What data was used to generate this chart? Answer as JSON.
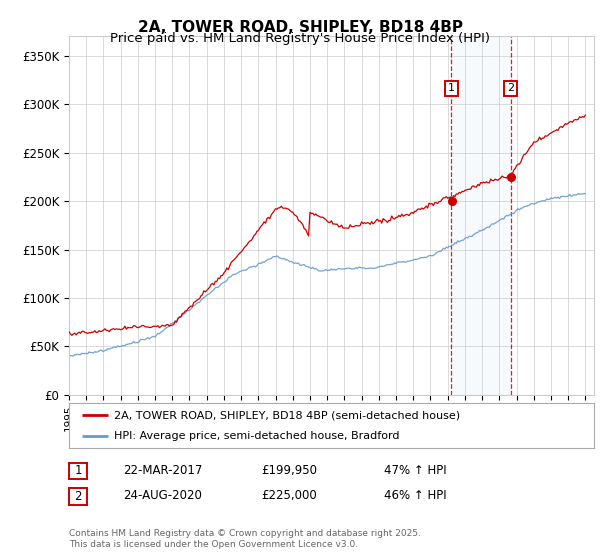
{
  "title": "2A, TOWER ROAD, SHIPLEY, BD18 4BP",
  "subtitle": "Price paid vs. HM Land Registry's House Price Index (HPI)",
  "ylabel_ticks": [
    "£0",
    "£50K",
    "£100K",
    "£150K",
    "£200K",
    "£250K",
    "£300K",
    "£350K"
  ],
  "ytick_values": [
    0,
    50000,
    100000,
    150000,
    200000,
    250000,
    300000,
    350000
  ],
  "ylim": [
    0,
    370000
  ],
  "xlim_start": 1995,
  "xlim_end": 2025.5,
  "red_color": "#cc0000",
  "blue_color": "#6699cc",
  "marker1_x": 2017.22,
  "marker2_x": 2020.65,
  "marker1_price": 199950,
  "marker2_price": 225000,
  "legend_label_red": "2A, TOWER ROAD, SHIPLEY, BD18 4BP (semi-detached house)",
  "legend_label_blue": "HPI: Average price, semi-detached house, Bradford",
  "note1_num": "1",
  "note1_date": "22-MAR-2017",
  "note1_price": "£199,950",
  "note1_hpi": "47% ↑ HPI",
  "note2_num": "2",
  "note2_date": "24-AUG-2020",
  "note2_price": "£225,000",
  "note2_hpi": "46% ↑ HPI",
  "footer": "Contains HM Land Registry data © Crown copyright and database right 2025.\nThis data is licensed under the Open Government Licence v3.0.",
  "background_color": "#ffffff",
  "grid_color": "#cccccc",
  "title_fontsize": 11,
  "subtitle_fontsize": 9.5,
  "tick_fontsize": 8.5,
  "shaded_color": "#daeaf5"
}
